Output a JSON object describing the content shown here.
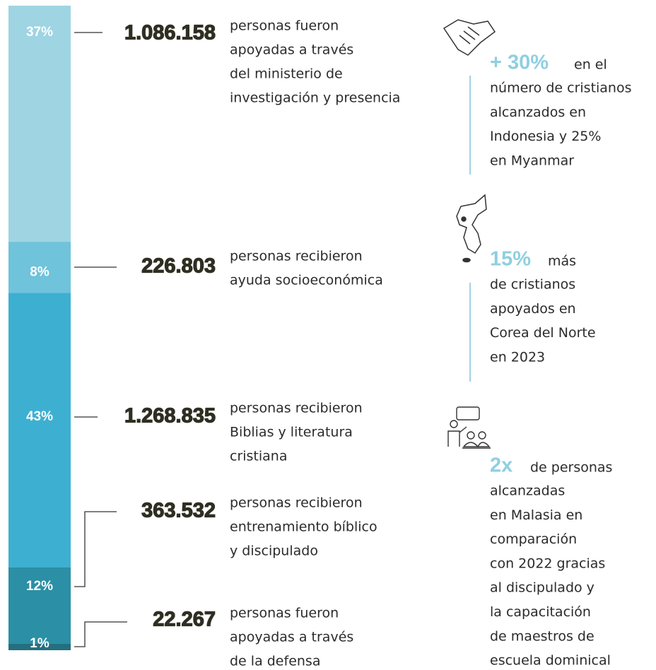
{
  "bar": {
    "segments": [
      {
        "value": 37,
        "label": "37%",
        "color": "#9fd4e3"
      },
      {
        "value": 8,
        "label": "8%",
        "color": "#6fc3da"
      },
      {
        "value": 43,
        "label": "43%",
        "color": "#3db0d1"
      },
      {
        "value": 12,
        "label": "12%",
        "color": "#2b8fa5"
      },
      {
        "value": 1,
        "label": "1%",
        "color": "#246f7f"
      }
    ]
  },
  "items": [
    {
      "count": "1.086.158",
      "lines": [
        "personas fueron",
        "apoyadas a través",
        "del ministerio de",
        "investigación y presencia"
      ]
    },
    {
      "count": "226.803",
      "lines": [
        "personas recibieron",
        "ayuda socioeconómica"
      ]
    },
    {
      "count": "1.268.835",
      "lines": [
        "personas recibieron",
        "Biblias y literatura",
        "cristiana"
      ]
    },
    {
      "count": "363.532",
      "lines": [
        "personas recibieron",
        "entrenamiento bíblico",
        "y discipulado"
      ]
    },
    {
      "count": "22.267",
      "lines": [
        "personas fueron",
        "apoyadas a través",
        "de la defensa"
      ]
    }
  ],
  "notes": [
    {
      "highlight": "+ 30%",
      "lead": "en el",
      "lines": [
        "número de cristianos",
        "alcanzados en",
        "Indonesia y 25%",
        "en Myanmar"
      ]
    },
    {
      "highlight": "15%",
      "lead": "más",
      "lines": [
        "de cristianos",
        "apoyados en",
        "Corea del Norte",
        "en 2023"
      ]
    },
    {
      "highlight": "2x",
      "lead": "de personas",
      "lines": [
        "alcanzadas",
        "en Malasia en",
        "comparación",
        "con 2022 gracias",
        "al discipulado y",
        "la capacitación",
        "de maestros de",
        "escuela dominical"
      ]
    }
  ]
}
